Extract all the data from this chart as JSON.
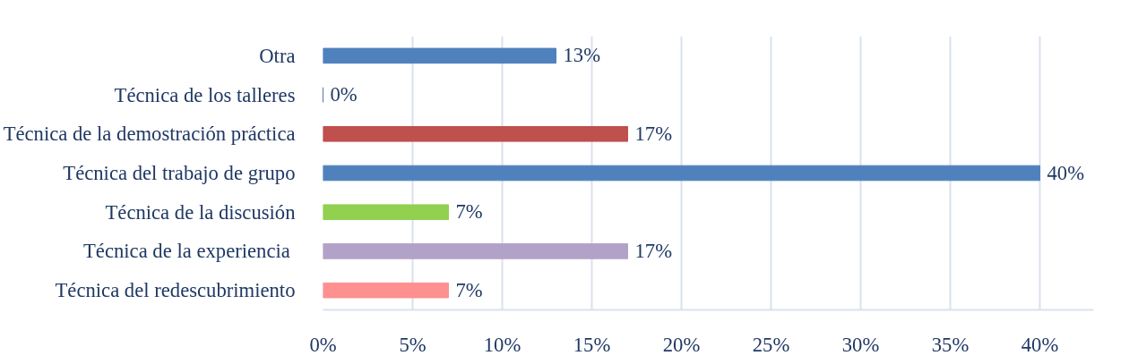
{
  "chart_data": {
    "type": "bar",
    "orientation": "horizontal",
    "categories": [
      "Otra",
      "Técnica de los talleres",
      "Técnica de la demostración práctica",
      "Técnica del trabajo de grupo",
      "Técnica de la discusión",
      "Técnica  de la experiencia",
      "Técnica del redescubrimiento"
    ],
    "values": [
      13,
      0,
      17,
      40,
      7,
      17,
      7
    ],
    "colors": [
      "#4f81bd",
      "#1f497d",
      "#c0504d",
      "#4f81bd",
      "#92d050",
      "#b3a2c7",
      "#ff9090"
    ],
    "value_labels": [
      "13%",
      "0%",
      "17%",
      "40%",
      "7%",
      "17%",
      "7%"
    ],
    "xlim": [
      0,
      43
    ],
    "xticks": [
      {
        "value": 0,
        "label": "0%"
      },
      {
        "value": 5,
        "label": "5%"
      },
      {
        "value": 10,
        "label": "10%"
      },
      {
        "value": 15,
        "label": "15%"
      },
      {
        "value": 20,
        "label": "20%"
      },
      {
        "value": 25,
        "label": "25%"
      },
      {
        "value": 30,
        "label": "30%"
      },
      {
        "value": 35,
        "label": "35%"
      },
      {
        "value": 40,
        "label": "40%"
      }
    ],
    "grid": "x"
  }
}
